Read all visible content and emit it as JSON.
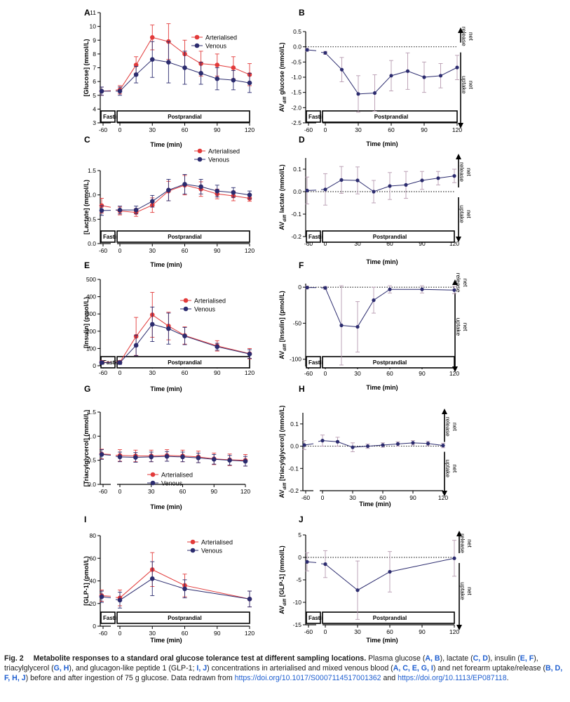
{
  "colors": {
    "arterialised": "#e23a3a",
    "venous": "#2b2b6e",
    "lr_err": "#b79ab0",
    "axis": "#000000"
  },
  "chart_data": [
    {
      "panel": "A",
      "type": "line",
      "ylabel": "[Glucose] (mmol/L)",
      "xlabel": "Time (min)",
      "ylim": [
        3,
        11
      ],
      "yticks": [
        3,
        4,
        5,
        6,
        7,
        8,
        9,
        10,
        11
      ],
      "x": [
        -60,
        0,
        15,
        30,
        45,
        60,
        75,
        90,
        105,
        120
      ],
      "xticks": [
        -60,
        0,
        30,
        60,
        90,
        120
      ],
      "legend": [
        "Arterialised",
        "Venous"
      ],
      "fasting_label": "Fasting",
      "postprandial_label": "Postprandial",
      "series": [
        {
          "name": "Arterialised",
          "values": [
            5.3,
            5.4,
            7.2,
            9.2,
            8.9,
            8.0,
            7.3,
            7.2,
            7.0,
            6.5
          ],
          "err": [
            0.3,
            0.3,
            0.6,
            0.9,
            1.3,
            1.0,
            0.9,
            0.8,
            0.8,
            0.8
          ]
        },
        {
          "name": "Venous",
          "values": [
            5.3,
            5.3,
            6.5,
            7.6,
            7.4,
            7.0,
            6.6,
            6.2,
            6.1,
            5.9
          ],
          "err": [
            0.3,
            0.3,
            0.6,
            1.3,
            1.5,
            1.2,
            0.8,
            0.8,
            0.7,
            0.7
          ]
        }
      ]
    },
    {
      "panel": "B",
      "type": "line",
      "ylabel_main": "AV",
      "ylabel_sub": "diff",
      "ylabel_rest": "glucose (mmol/L)",
      "xlabel": "Time (min)",
      "ylim": [
        -2.5,
        0.5
      ],
      "yticks": [
        -2.5,
        -2.0,
        -1.5,
        -1.0,
        -0.5,
        0.0,
        0.5
      ],
      "ytick_labels": [
        "-2.5",
        "-2.0",
        "-1.5",
        "-1.0",
        "-0.5",
        "0.0",
        "0.5"
      ],
      "x": [
        -60,
        0,
        15,
        30,
        45,
        60,
        75,
        90,
        105,
        120
      ],
      "xticks": [
        -60,
        0,
        30,
        60,
        90,
        120
      ],
      "fasting_label": "Fasting",
      "postprandial_label": "Postprandial",
      "release_label": [
        "net",
        "release"
      ],
      "uptake_label": [
        "net",
        "uptake"
      ],
      "series": [
        {
          "values": [
            -0.1,
            -0.2,
            -0.75,
            -1.55,
            -1.52,
            -0.95,
            -0.8,
            -1.0,
            -0.95,
            -0.68
          ],
          "err": [
            0.05,
            0.05,
            0.4,
            0.6,
            0.6,
            0.5,
            0.6,
            0.5,
            0.4,
            0.4
          ]
        }
      ]
    },
    {
      "panel": "C",
      "type": "line",
      "ylabel": "[Lactate] (mmol/L)",
      "xlabel": "Time (min)",
      "ylim": [
        0,
        1.5
      ],
      "yticks": [
        0,
        0.5,
        1.0,
        1.5
      ],
      "ytick_labels": [
        "0.0",
        "0.5",
        "1.0",
        "1.5"
      ],
      "x": [
        -60,
        0,
        15,
        30,
        45,
        60,
        75,
        90,
        105,
        120
      ],
      "xticks": [
        -60,
        0,
        30,
        60,
        90,
        120
      ],
      "legend": [
        "Arterialised",
        "Venous"
      ],
      "fasting_label": "Fasting",
      "postprandial_label": "Postprandial",
      "series": [
        {
          "name": "Arterialised",
          "values": [
            0.78,
            0.67,
            0.64,
            0.79,
            1.08,
            1.2,
            1.12,
            1.02,
            0.98,
            0.93
          ],
          "err": [
            0.15,
            0.08,
            0.08,
            0.15,
            0.2,
            0.2,
            0.15,
            0.1,
            0.1,
            0.06
          ]
        },
        {
          "name": "Venous",
          "values": [
            0.68,
            0.69,
            0.69,
            0.87,
            1.1,
            1.22,
            1.17,
            1.08,
            1.05,
            1.0
          ],
          "err": [
            0.1,
            0.08,
            0.08,
            0.12,
            0.22,
            0.2,
            0.15,
            0.12,
            0.1,
            0.08
          ]
        }
      ]
    },
    {
      "panel": "D",
      "type": "line",
      "ylabel_main": "AV",
      "ylabel_sub": "diff",
      "ylabel_rest": "lactate (mmol/L)",
      "xlabel": "Time (min)",
      "ylim": [
        -0.2,
        0.15
      ],
      "yticks": [
        -0.2,
        -0.1,
        0.0,
        0.1
      ],
      "ytick_labels": [
        "-0.2",
        "-0.1",
        "0.0",
        "0.1"
      ],
      "x": [
        -60,
        0,
        15,
        30,
        45,
        60,
        75,
        90,
        105,
        120
      ],
      "xticks": [
        -60,
        0,
        30,
        60,
        90,
        120
      ],
      "fasting_label": "Fasting",
      "postprandial_label": "Postprandial",
      "release_label": [
        "net",
        "release"
      ],
      "uptake_label": [
        "net",
        "uptake"
      ],
      "series": [
        {
          "values": [
            0.005,
            0.01,
            0.052,
            0.05,
            0.0,
            0.025,
            0.03,
            0.05,
            0.06,
            0.07
          ],
          "err": [
            0.06,
            0.07,
            0.06,
            0.06,
            0.05,
            0.06,
            0.06,
            0.04,
            0.03,
            0.03
          ]
        }
      ]
    },
    {
      "panel": "E",
      "type": "line",
      "ylabel": "[Insulin] (pmol/L)",
      "xlabel": "Time (min)",
      "ylim": [
        0,
        500
      ],
      "yticks": [
        0,
        100,
        200,
        300,
        400,
        500
      ],
      "x": [
        -60,
        0,
        15,
        30,
        45,
        60,
        90,
        120
      ],
      "xticks": [
        -60,
        0,
        30,
        60,
        90,
        120
      ],
      "legend": [
        "Arterialised",
        "Venous"
      ],
      "fasting_label": "Fasting",
      "postprandial_label": "Postprandial",
      "series": [
        {
          "name": "Arterialised",
          "values": [
            20,
            20,
            170,
            295,
            230,
            175,
            115,
            70
          ],
          "err": [
            10,
            10,
            110,
            130,
            80,
            50,
            30,
            30
          ]
        },
        {
          "name": "Venous",
          "values": [
            18,
            18,
            118,
            240,
            215,
            172,
            110,
            68
          ],
          "err": [
            10,
            10,
            60,
            100,
            90,
            50,
            20,
            25
          ]
        }
      ]
    },
    {
      "panel": "F",
      "type": "line",
      "ylabel_main": "AV",
      "ylabel_sub": "diff",
      "ylabel_rest": "[Insulin] (pmol/L)",
      "xlabel": "Time (min)",
      "ylim": [
        -110,
        5
      ],
      "yticks": [
        -100,
        -50,
        0
      ],
      "x": [
        -60,
        0,
        15,
        30,
        45,
        60,
        90,
        120
      ],
      "xticks": [
        -60,
        0,
        30,
        60,
        90,
        120
      ],
      "fasting_label": "Fasting",
      "postprandial_label": "Postprandial",
      "release_label": [
        "net",
        "release"
      ],
      "uptake_label": [
        "net",
        "uptake"
      ],
      "series": [
        {
          "values": [
            -0.5,
            -1,
            -53,
            -55,
            -18,
            -3,
            -3,
            -4
          ],
          "err": [
            2,
            2,
            55,
            35,
            18,
            5,
            5,
            5
          ]
        }
      ]
    },
    {
      "panel": "G",
      "type": "line",
      "ylabel": "[Triacylglycerol] (mmol/L)",
      "xlabel": "Time (min)",
      "ylim": [
        0,
        1.5
      ],
      "yticks": [
        0,
        0.5,
        1.0,
        1.5
      ],
      "ytick_labels": [
        "0.0",
        "0.5",
        "1.0",
        "1.5"
      ],
      "x": [
        -60,
        0,
        15,
        30,
        45,
        60,
        75,
        90,
        105,
        120
      ],
      "xticks": [
        -60,
        0,
        30,
        60,
        90,
        120
      ],
      "legend": [
        "Arterialised",
        "Venous"
      ],
      "series": [
        {
          "name": "Arterialised",
          "values": [
            0.63,
            0.6,
            0.59,
            0.59,
            0.6,
            0.59,
            0.57,
            0.53,
            0.51,
            0.5
          ],
          "err": [
            0.1,
            0.12,
            0.12,
            0.12,
            0.12,
            0.12,
            0.12,
            0.12,
            0.12,
            0.12
          ]
        },
        {
          "name": "Venous",
          "values": [
            0.62,
            0.57,
            0.56,
            0.57,
            0.58,
            0.57,
            0.55,
            0.52,
            0.5,
            0.48
          ],
          "err": [
            0.1,
            0.1,
            0.1,
            0.1,
            0.1,
            0.1,
            0.1,
            0.1,
            0.1,
            0.1
          ]
        }
      ]
    },
    {
      "panel": "H",
      "type": "line",
      "ylabel_main": "AV",
      "ylabel_sub": "diff",
      "ylabel_rest": "[triacylglycerol] (mmol/L)",
      "xlabel": "Time (min)",
      "ylim": [
        -0.2,
        0.15
      ],
      "yticks": [
        -0.2,
        -0.1,
        0.0,
        0.1
      ],
      "ytick_labels": [
        "-0.2",
        "-0.1",
        "0.0",
        "0.1"
      ],
      "x": [
        -60,
        0,
        15,
        30,
        45,
        60,
        75,
        90,
        105,
        120
      ],
      "xticks": [
        -60,
        0,
        30,
        60,
        90,
        120
      ],
      "release_label": [
        "net",
        "release"
      ],
      "uptake_label": [
        "net",
        "uptake"
      ],
      "series": [
        {
          "values": [
            0.005,
            0.025,
            0.02,
            -0.005,
            0.0,
            0.005,
            0.01,
            0.015,
            0.012,
            0.003
          ],
          "err": [
            0.02,
            0.025,
            0.02,
            0.02,
            0.01,
            0.01,
            0.01,
            0.01,
            0.01,
            0.01
          ]
        }
      ]
    },
    {
      "panel": "I",
      "type": "line",
      "ylabel": "[GLP-1] (pmol/L)",
      "xlabel": "Time (min)",
      "ylim": [
        0,
        80
      ],
      "yticks": [
        0,
        20,
        40,
        60,
        80
      ],
      "x": [
        -60,
        0,
        30,
        60,
        120
      ],
      "xticks": [
        -60,
        0,
        30,
        60,
        90,
        120
      ],
      "legend": [
        "Arterialised",
        "Venous"
      ],
      "fasting_label": "Fasting",
      "postprandial_label": "Postprandial",
      "series": [
        {
          "name": "Arterialised",
          "values": [
            27,
            25,
            50,
            36,
            24
          ],
          "err": [
            5,
            7,
            15,
            10,
            7
          ]
        },
        {
          "name": "Venous",
          "values": [
            26,
            23,
            42,
            33,
            24
          ],
          "err": [
            5,
            7,
            15,
            8,
            7
          ]
        }
      ]
    },
    {
      "panel": "J",
      "type": "line",
      "ylabel_main": "AV",
      "ylabel_sub": "diff",
      "ylabel_rest": "[GLP-1] (mmol/L)",
      "xlabel": "Time (min)",
      "ylim": [
        -15,
        5
      ],
      "yticks": [
        -15,
        -10,
        -5,
        0,
        5
      ],
      "x": [
        -60,
        0,
        30,
        60,
        120
      ],
      "xticks": [
        -60,
        0,
        30,
        60,
        90,
        120
      ],
      "fasting_label": "Fasting",
      "postprandial_label": "Postprandial",
      "release_label": [
        "net",
        "release"
      ],
      "uptake_label": [
        "net",
        "uptake"
      ],
      "series": [
        {
          "values": [
            -1,
            -1.5,
            -7.3,
            -3.2,
            -0.2
          ],
          "err": [
            2,
            3,
            6.5,
            4.5,
            4
          ]
        }
      ]
    }
  ],
  "caption": {
    "label": "Fig. 2",
    "title": "Metabolite responses to a standard oral glucose tolerance test at different sampling locations.",
    "t1": " Plasma glucose (",
    "t2": "), lactate (",
    "t3": "), insulin (",
    "t4": "), triacylglycerol (",
    "t5": "), and glucagon-like peptide 1 (GLP-1; ",
    "t6": ") concentrations in arterialised and mixed venous blood (",
    "t7": ") and net forearm uptake/release (",
    "t8": ") before and after ingestion of 75 g glucose. Data redrawn from ",
    "t9": " and ",
    "refs": [
      "A, B",
      "C, D",
      "E, F",
      "G, H",
      "I, J",
      "A, C, E, G, I",
      "B, D, F, H, J"
    ],
    "link1": "https://doi.org/10.1017/S0007114517001362",
    "link2": "https://doi.org/10.1113/EP087118",
    "end": "."
  }
}
